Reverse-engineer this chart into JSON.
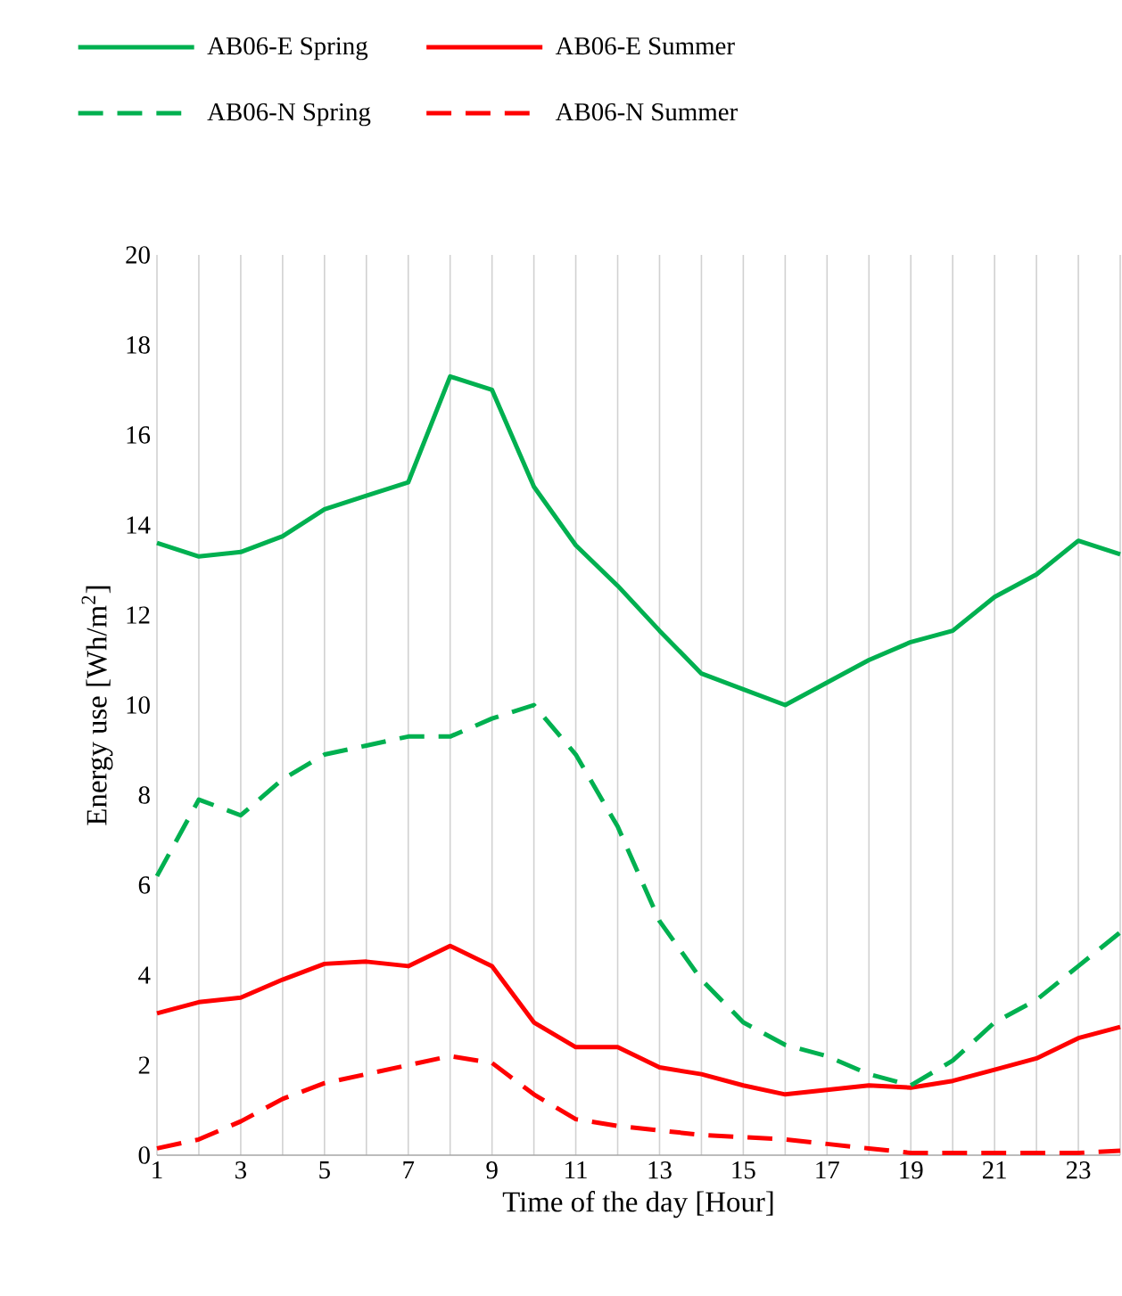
{
  "chart_data": {
    "type": "line",
    "xlabel": "Time of the day [Hour]",
    "ylabel": "Energy use [Wh/m$^{2}$]",
    "x": [
      1,
      2,
      3,
      4,
      5,
      6,
      7,
      8,
      9,
      10,
      11,
      12,
      13,
      14,
      15,
      16,
      17,
      18,
      19,
      20,
      21,
      22,
      23,
      24
    ],
    "series": [
      {
        "name": "AB06-E Spring",
        "color": "#00b050",
        "line_style": "solid",
        "values": [
          13.6,
          13.3,
          13.4,
          13.75,
          14.35,
          14.65,
          14.95,
          17.3,
          17.0,
          14.85,
          13.55,
          12.65,
          11.65,
          10.7,
          10.35,
          10.0,
          10.5,
          11.0,
          11.4,
          11.65,
          12.4,
          12.9,
          13.65,
          13.35
        ]
      },
      {
        "name": "AB06-E Summer",
        "color": "#ff0000",
        "line_style": "solid",
        "values": [
          3.15,
          3.4,
          3.5,
          3.9,
          4.25,
          4.3,
          4.2,
          4.65,
          4.2,
          2.95,
          2.4,
          2.4,
          1.95,
          1.8,
          1.55,
          1.35,
          1.45,
          1.55,
          1.5,
          1.65,
          1.9,
          2.15,
          2.6,
          2.85
        ]
      },
      {
        "name": "AB06-N Spring",
        "color": "#00b050",
        "line_style": "dashed",
        "values": [
          6.2,
          7.9,
          7.55,
          8.35,
          8.9,
          9.1,
          9.3,
          9.3,
          9.7,
          10.0,
          8.9,
          7.3,
          5.2,
          3.9,
          2.95,
          2.45,
          2.2,
          1.8,
          1.55,
          2.1,
          2.95,
          3.45,
          4.2,
          4.95
        ]
      },
      {
        "name": "AB06-N Summer",
        "color": "#ff0000",
        "line_style": "dashed",
        "values": [
          0.15,
          0.35,
          0.75,
          1.25,
          1.6,
          1.8,
          2.0,
          2.2,
          2.05,
          1.35,
          0.8,
          0.65,
          0.55,
          0.45,
          0.4,
          0.35,
          0.25,
          0.15,
          0.05,
          0.05,
          0.05,
          0.05,
          0.05,
          0.1
        ]
      }
    ],
    "xlim": [
      1,
      24
    ],
    "ylim": [
      0,
      20
    ],
    "xticks": [
      1,
      {
        "value": 2,
        "label": null
      },
      3,
      {
        "value": 4,
        "label": null
      },
      5,
      {
        "value": 6,
        "label": null
      },
      7,
      {
        "value": 8,
        "label": null
      },
      9,
      {
        "value": 10,
        "label": null
      },
      11,
      {
        "value": 12,
        "label": null
      },
      13,
      {
        "value": 14,
        "label": null
      },
      15,
      {
        "value": 16,
        "label": null
      },
      17,
      {
        "value": 18,
        "label": null
      },
      19,
      {
        "value": 20,
        "label": null
      },
      21,
      {
        "value": 22,
        "label": null
      },
      23,
      {
        "value": 24,
        "label": null
      }
    ],
    "yticks": [
      0,
      2,
      4,
      6,
      8,
      10,
      12,
      14,
      16,
      18,
      20
    ],
    "grid": "x",
    "legend": "top",
    "marker": "none"
  }
}
